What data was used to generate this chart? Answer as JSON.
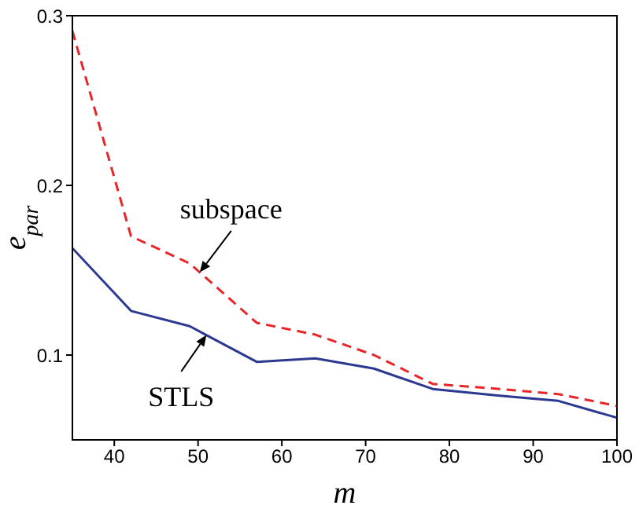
{
  "chart_data": {
    "type": "line",
    "xlabel": "m",
    "ylabel": "e$_{par}$",
    "x": [
      35,
      42,
      49,
      57,
      64,
      71,
      78,
      86,
      93,
      100
    ],
    "series": [
      {
        "name": "subspace",
        "color": "#e8262a",
        "line_style": "dashed",
        "values": [
          0.291,
          0.17,
          0.154,
          0.119,
          0.112,
          0.1,
          0.083,
          0.08,
          0.077,
          0.07
        ]
      },
      {
        "name": "STLS",
        "color": "#2b3990",
        "line_style": "solid",
        "values": [
          0.163,
          0.126,
          0.117,
          0.096,
          0.098,
          0.092,
          0.08,
          0.076,
          0.073,
          0.063
        ]
      }
    ],
    "xlim": [
      35,
      100
    ],
    "xticks": [
      40,
      50,
      60,
      70,
      80,
      90,
      100
    ],
    "ylim": [
      0.05,
      0.3
    ],
    "yticks": [
      0.1,
      0.2,
      0.3
    ],
    "grid": false,
    "legend": false,
    "marker": "none"
  }
}
